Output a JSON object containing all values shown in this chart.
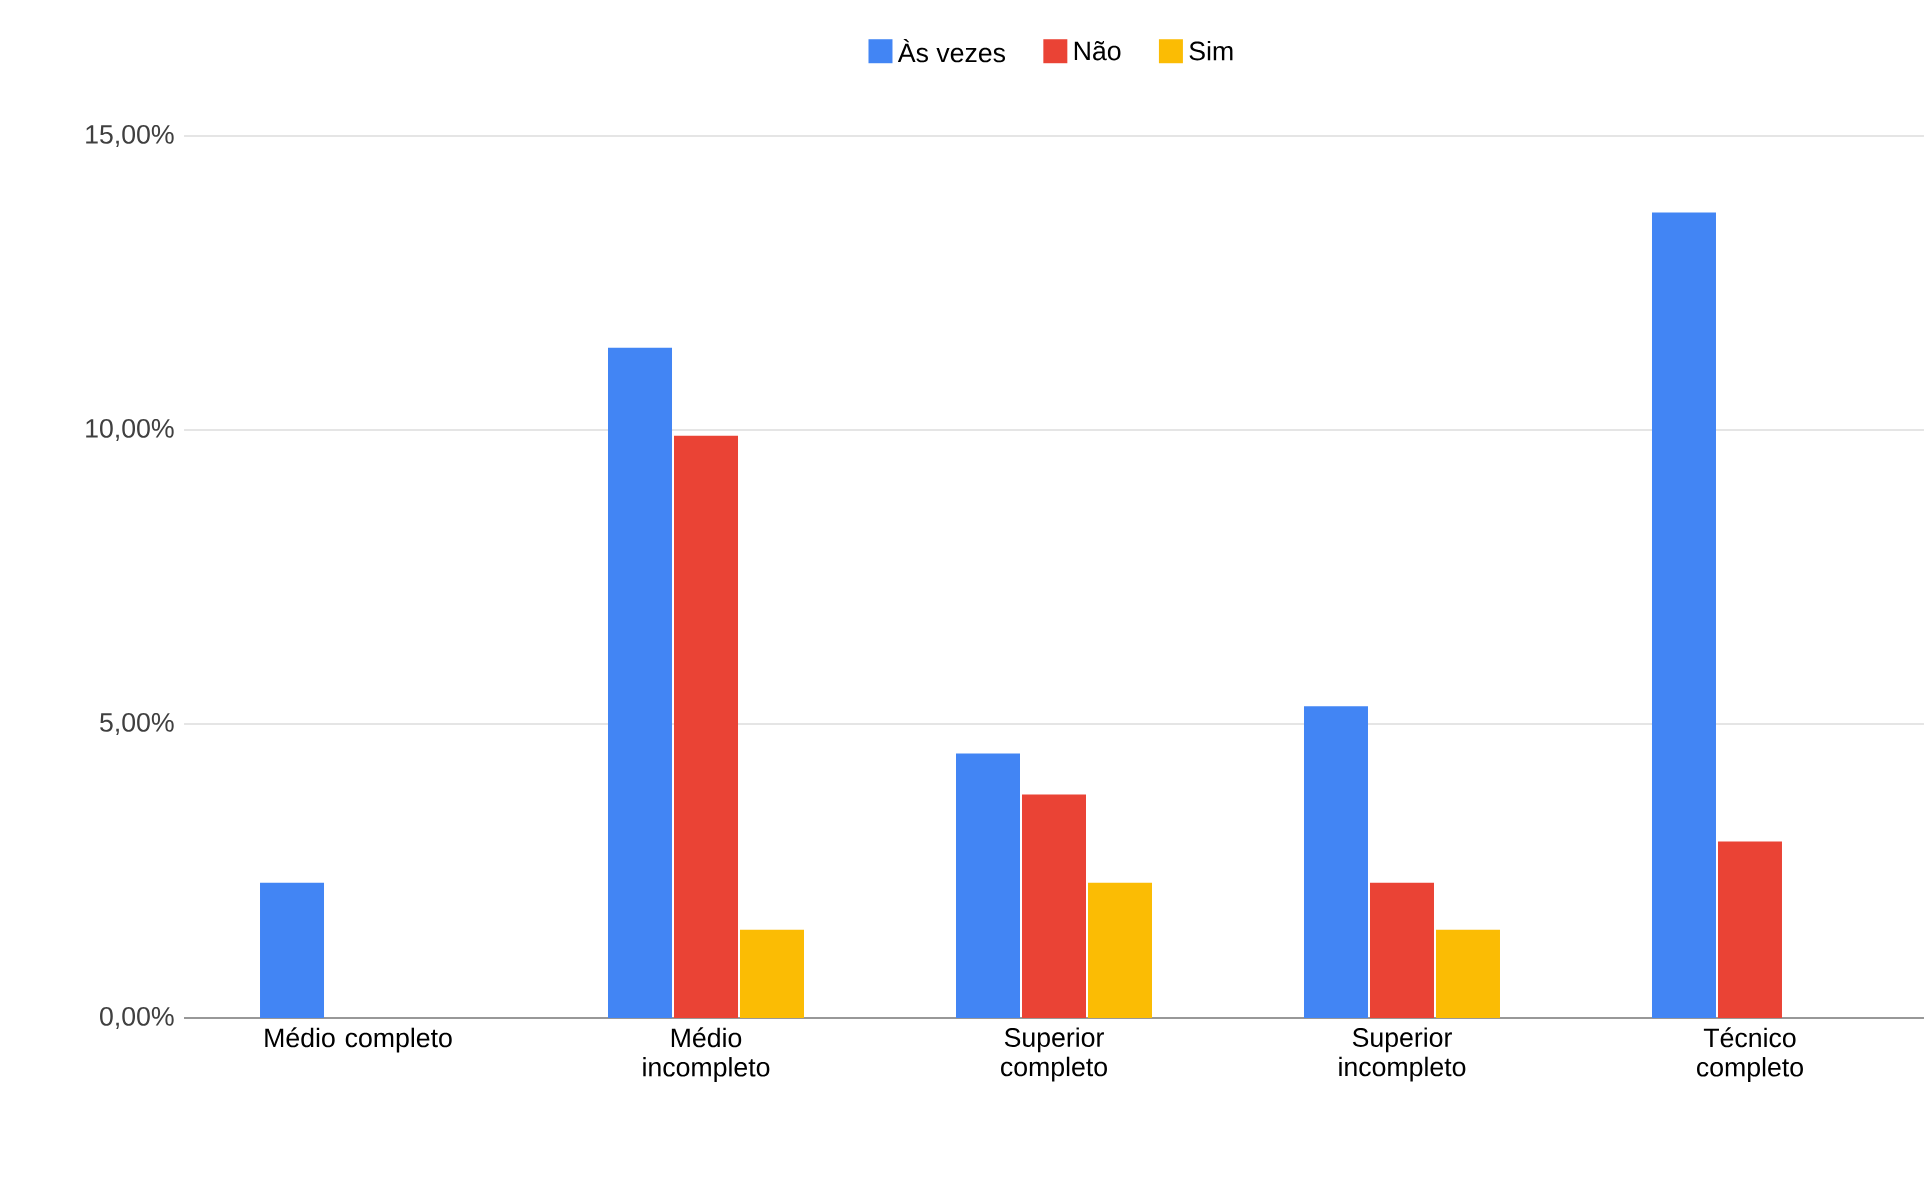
{
  "chart_data": {
    "type": "bar",
    "categories": [
      "Médio completo",
      "Médio incompleto",
      "Superior completo",
      "Superior incompleto",
      "Técnico completo"
    ],
    "series": [
      {
        "name": "Às vezes",
        "color": "#4285f4",
        "values": [
          2.3,
          11.4,
          4.5,
          5.3,
          13.7
        ]
      },
      {
        "name": "Não",
        "color": "#ea4335",
        "values": [
          null,
          9.9,
          3.8,
          2.3,
          3.0
        ]
      },
      {
        "name": "Sim",
        "color": "#fbbc04",
        "values": [
          null,
          1.5,
          2.3,
          1.5,
          null
        ]
      }
    ],
    "ylim": [
      0,
      15
    ],
    "yticks": [
      {
        "value": 0,
        "label": "0,00%"
      },
      {
        "value": 5,
        "label": "5,00%"
      },
      {
        "value": 10,
        "label": "10,00%"
      },
      {
        "value": 15,
        "label": "15,00%"
      }
    ],
    "grid": "y",
    "legend": "top"
  }
}
